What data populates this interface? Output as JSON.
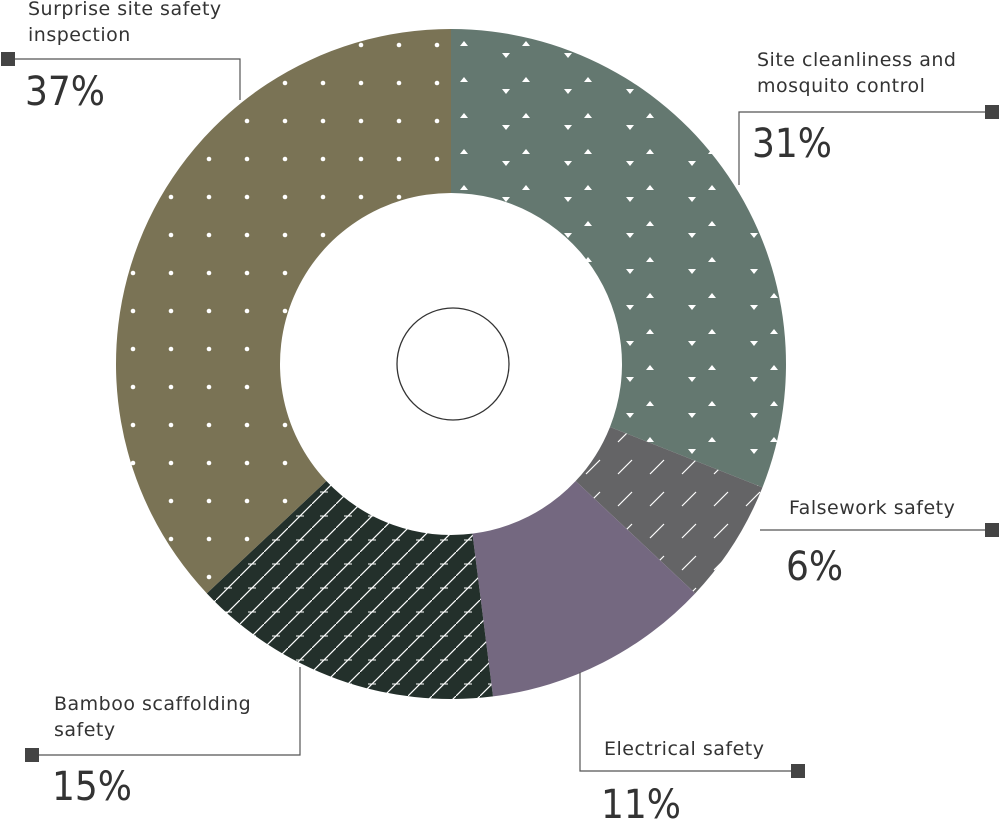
{
  "chart_data": {
    "type": "donut",
    "categories": [
      "Site cleanliness and mosquito control",
      "Falsework safety",
      "Electrical safety",
      "Bamboo scaffolding safety",
      "Surprise site safety inspection"
    ],
    "values": [
      31,
      6,
      11,
      15,
      37
    ],
    "value_labels": [
      "31%",
      "6%",
      "11%",
      "15%",
      "37%"
    ],
    "colors": [
      "#647870",
      "#646466",
      "#746880",
      "#23302b",
      "#7a7355"
    ]
  }
}
